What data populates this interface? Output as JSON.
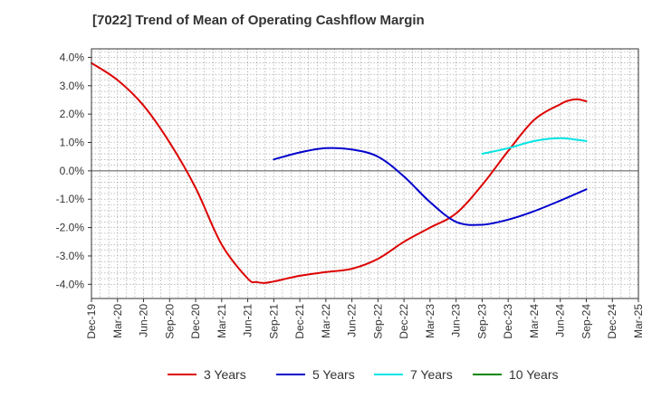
{
  "title": "[7022]  Trend of Mean of Operating Cashflow Margin",
  "chart_data": {
    "type": "line",
    "title": "[7022]  Trend of Mean of Operating Cashflow Margin",
    "xlabel": "",
    "ylabel": "",
    "x_ticks": [
      "Dec-19",
      "Mar-20",
      "Jun-20",
      "Sep-20",
      "Dec-20",
      "Mar-21",
      "Jun-21",
      "Sep-21",
      "Dec-21",
      "Mar-22",
      "Jun-22",
      "Sep-22",
      "Dec-22",
      "Mar-23",
      "Jun-23",
      "Sep-23",
      "Dec-23",
      "Mar-24",
      "Jun-24",
      "Sep-24",
      "Dec-24",
      "Mar-25"
    ],
    "y_ticks": [
      -4.0,
      -3.0,
      -2.0,
      -1.0,
      0.0,
      1.0,
      2.0,
      3.0,
      4.0
    ],
    "y_tick_labels": [
      "-4.0%",
      "-3.0%",
      "-2.0%",
      "-1.0%",
      "0.0%",
      "1.0%",
      "2.0%",
      "3.0%",
      "4.0%"
    ],
    "ylim": [
      -4.5,
      4.3
    ],
    "grid": true,
    "legend_position": "bottom",
    "series": [
      {
        "name": "3 Years",
        "color": "#dd0000",
        "x": [
          "Dec-19",
          "Mar-20",
          "Jun-20",
          "Sep-20",
          "Dec-20",
          "Mar-21",
          "Jun-21",
          "Jul-21",
          "Aug-21",
          "Sep-21",
          "Dec-21",
          "Mar-22",
          "Jun-22",
          "Sep-22",
          "Dec-22",
          "Mar-23",
          "Jun-23",
          "Sep-23",
          "Dec-23",
          "Mar-24",
          "Jun-24",
          "Jul-24",
          "Aug-24",
          "Sep-24"
        ],
        "values": [
          3.8,
          3.2,
          2.3,
          1.0,
          -0.6,
          -2.6,
          -3.8,
          -3.92,
          -3.95,
          -3.9,
          -3.7,
          -3.57,
          -3.45,
          -3.1,
          -2.5,
          -2.0,
          -1.5,
          -0.5,
          0.7,
          1.8,
          2.35,
          2.48,
          2.52,
          2.45
        ]
      },
      {
        "name": "5 Years",
        "color": "#0000cc",
        "x": [
          "Sep-21",
          "Dec-21",
          "Mar-22",
          "Jun-22",
          "Sep-22",
          "Dec-22",
          "Mar-23",
          "Jun-23",
          "Sep-23",
          "Dec-23",
          "Mar-24",
          "Jun-24",
          "Sep-24"
        ],
        "values": [
          0.4,
          0.65,
          0.8,
          0.75,
          0.5,
          -0.2,
          -1.1,
          -1.8,
          -1.9,
          -1.72,
          -1.42,
          -1.05,
          -0.65
        ]
      },
      {
        "name": "7 Years",
        "color": "#00e5e5",
        "x": [
          "Sep-23",
          "Dec-23",
          "Mar-24",
          "Jun-24",
          "Sep-24"
        ],
        "values": [
          0.6,
          0.8,
          1.05,
          1.15,
          1.05
        ]
      },
      {
        "name": "10 Years",
        "color": "#008800",
        "x": [],
        "values": []
      }
    ]
  }
}
